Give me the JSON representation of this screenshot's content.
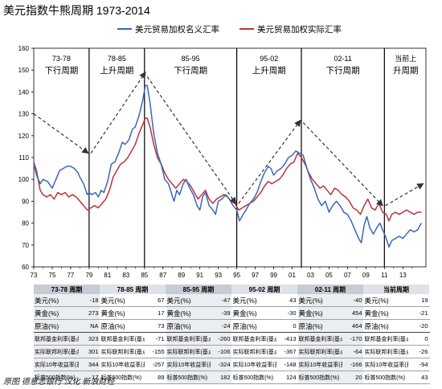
{
  "title": "美元指数牛熊周期 1973-2014",
  "source": "原图 德意志银行  汉化 新浪财经",
  "chart_data": {
    "type": "line",
    "ylim": [
      60,
      160
    ],
    "yticks": [
      60,
      70,
      80,
      90,
      100,
      110,
      120,
      130,
      140,
      150,
      160
    ],
    "xlim": [
      1973,
      2015.5
    ],
    "xtick_labels": [
      "73",
      "75",
      "77",
      "79",
      "81",
      "83",
      "85",
      "87",
      "89",
      "91",
      "93",
      "95",
      "97",
      "99",
      "01",
      "03",
      "05",
      "07",
      "09",
      "11",
      "13"
    ],
    "legend": "top-center",
    "series": [
      {
        "name": "美元贸易加权名义汇率",
        "color": "#3a68b8",
        "points": [
          [
            1973.0,
            107
          ],
          [
            1973.3,
            102
          ],
          [
            1973.7,
            98
          ],
          [
            1974.0,
            100
          ],
          [
            1974.5,
            99
          ],
          [
            1975.0,
            96
          ],
          [
            1975.4,
            100
          ],
          [
            1975.8,
            104
          ],
          [
            1976.2,
            105
          ],
          [
            1976.6,
            106
          ],
          [
            1977.0,
            106
          ],
          [
            1977.4,
            105
          ],
          [
            1977.8,
            103
          ],
          [
            1978.0,
            101
          ],
          [
            1978.4,
            98
          ],
          [
            1978.8,
            93
          ],
          [
            1979.0,
            94
          ],
          [
            1979.3,
            93
          ],
          [
            1979.7,
            94
          ],
          [
            1980.0,
            92
          ],
          [
            1980.3,
            95
          ],
          [
            1980.6,
            94
          ],
          [
            1981.0,
            99
          ],
          [
            1981.4,
            107
          ],
          [
            1981.8,
            108
          ],
          [
            1982.2,
            112
          ],
          [
            1982.6,
            117
          ],
          [
            1982.9,
            116
          ],
          [
            1983.3,
            118
          ],
          [
            1983.7,
            123
          ],
          [
            1984.0,
            124
          ],
          [
            1984.4,
            129
          ],
          [
            1984.8,
            136
          ],
          [
            1985.1,
            143
          ],
          [
            1985.3,
            143
          ],
          [
            1985.6,
            135
          ],
          [
            1986.0,
            121
          ],
          [
            1986.4,
            112
          ],
          [
            1986.8,
            107
          ],
          [
            1987.2,
            100
          ],
          [
            1987.6,
            98
          ],
          [
            1987.9,
            94
          ],
          [
            1988.2,
            90
          ],
          [
            1988.5,
            95
          ],
          [
            1988.8,
            93
          ],
          [
            1989.2,
            98
          ],
          [
            1989.5,
            100
          ],
          [
            1989.9,
            96
          ],
          [
            1990.3,
            93
          ],
          [
            1990.7,
            88
          ],
          [
            1991.0,
            86
          ],
          [
            1991.3,
            92
          ],
          [
            1991.6,
            94
          ],
          [
            1992.0,
            88
          ],
          [
            1992.4,
            86
          ],
          [
            1992.7,
            84
          ],
          [
            1993.0,
            90
          ],
          [
            1993.4,
            91
          ],
          [
            1993.8,
            93
          ],
          [
            1994.2,
            91
          ],
          [
            1994.6,
            88
          ],
          [
            1995.0,
            86
          ],
          [
            1995.3,
            81
          ],
          [
            1995.7,
            84
          ],
          [
            1996.0,
            86
          ],
          [
            1996.4,
            89
          ],
          [
            1996.8,
            91
          ],
          [
            1997.2,
            94
          ],
          [
            1997.6,
            99
          ],
          [
            1998.0,
            103
          ],
          [
            1998.4,
            106
          ],
          [
            1998.7,
            105
          ],
          [
            1999.0,
            102
          ],
          [
            1999.4,
            104
          ],
          [
            1999.8,
            105
          ],
          [
            2000.2,
            107
          ],
          [
            2000.6,
            110
          ],
          [
            2001.0,
            111
          ],
          [
            2001.4,
            113
          ],
          [
            2001.8,
            112
          ],
          [
            2002.2,
            111
          ],
          [
            2002.6,
            105
          ],
          [
            2003.0,
            100
          ],
          [
            2003.4,
            96
          ],
          [
            2003.8,
            91
          ],
          [
            2004.2,
            88
          ],
          [
            2004.6,
            90
          ],
          [
            2005.0,
            85
          ],
          [
            2005.4,
            88
          ],
          [
            2005.8,
            90
          ],
          [
            2006.2,
            88
          ],
          [
            2006.6,
            85
          ],
          [
            2007.0,
            84
          ],
          [
            2007.4,
            81
          ],
          [
            2007.8,
            77
          ],
          [
            2008.2,
            73
          ],
          [
            2008.5,
            71
          ],
          [
            2008.8,
            79
          ],
          [
            2009.1,
            83
          ],
          [
            2009.4,
            78
          ],
          [
            2009.8,
            75
          ],
          [
            2010.2,
            78
          ],
          [
            2010.5,
            80
          ],
          [
            2010.9,
            76
          ],
          [
            2011.2,
            73
          ],
          [
            2011.5,
            69
          ],
          [
            2011.8,
            72
          ],
          [
            2012.2,
            73
          ],
          [
            2012.6,
            74
          ],
          [
            2013.0,
            73
          ],
          [
            2013.4,
            75
          ],
          [
            2013.8,
            77
          ],
          [
            2014.2,
            76
          ],
          [
            2014.6,
            77
          ],
          [
            2015.0,
            80
          ]
        ]
      },
      {
        "name": "美元贸易加权实际汇率",
        "color": "#c0323a",
        "points": [
          [
            1973.0,
            108
          ],
          [
            1973.3,
            104
          ],
          [
            1973.7,
            95
          ],
          [
            1974.0,
            93
          ],
          [
            1974.4,
            92
          ],
          [
            1974.8,
            93
          ],
          [
            1975.2,
            91
          ],
          [
            1975.6,
            94
          ],
          [
            1976.0,
            93
          ],
          [
            1976.4,
            94
          ],
          [
            1976.8,
            92
          ],
          [
            1977.2,
            93
          ],
          [
            1977.6,
            92
          ],
          [
            1978.0,
            90
          ],
          [
            1978.4,
            88
          ],
          [
            1978.8,
            86
          ],
          [
            1979.2,
            87
          ],
          [
            1979.6,
            88
          ],
          [
            1980.0,
            87
          ],
          [
            1980.4,
            89
          ],
          [
            1980.8,
            91
          ],
          [
            1981.2,
            95
          ],
          [
            1981.6,
            101
          ],
          [
            1982.0,
            104
          ],
          [
            1982.4,
            107
          ],
          [
            1982.8,
            108
          ],
          [
            1983.2,
            110
          ],
          [
            1983.6,
            113
          ],
          [
            1984.0,
            116
          ],
          [
            1984.4,
            121
          ],
          [
            1984.8,
            125
          ],
          [
            1985.1,
            128
          ],
          [
            1985.3,
            128
          ],
          [
            1985.6,
            124
          ],
          [
            1986.0,
            116
          ],
          [
            1986.4,
            110
          ],
          [
            1986.8,
            107
          ],
          [
            1987.2,
            103
          ],
          [
            1987.6,
            100
          ],
          [
            1988.0,
            98
          ],
          [
            1988.4,
            96
          ],
          [
            1988.8,
            98
          ],
          [
            1989.2,
            100
          ],
          [
            1989.6,
            99
          ],
          [
            1990.0,
            97
          ],
          [
            1990.4,
            94
          ],
          [
            1990.8,
            91
          ],
          [
            1991.2,
            93
          ],
          [
            1991.6,
            95
          ],
          [
            1992.0,
            91
          ],
          [
            1992.4,
            89
          ],
          [
            1992.8,
            91
          ],
          [
            1993.2,
            92
          ],
          [
            1993.6,
            93
          ],
          [
            1994.0,
            92
          ],
          [
            1994.4,
            90
          ],
          [
            1994.8,
            89
          ],
          [
            1995.2,
            86
          ],
          [
            1995.6,
            87
          ],
          [
            1996.0,
            88
          ],
          [
            1996.4,
            89
          ],
          [
            1996.8,
            90
          ],
          [
            1997.2,
            92
          ],
          [
            1997.6,
            94
          ],
          [
            1998.0,
            97
          ],
          [
            1998.4,
            99
          ],
          [
            1998.8,
            98
          ],
          [
            1999.2,
            99
          ],
          [
            1999.6,
            100
          ],
          [
            2000.0,
            102
          ],
          [
            2000.4,
            105
          ],
          [
            2000.8,
            107
          ],
          [
            2001.2,
            108
          ],
          [
            2001.6,
            112
          ],
          [
            2002.0,
            110
          ],
          [
            2002.4,
            107
          ],
          [
            2002.8,
            103
          ],
          [
            2003.2,
            100
          ],
          [
            2003.6,
            98
          ],
          [
            2004.0,
            96
          ],
          [
            2004.4,
            97
          ],
          [
            2004.8,
            95
          ],
          [
            2005.2,
            93
          ],
          [
            2005.6,
            96
          ],
          [
            2006.0,
            95
          ],
          [
            2006.4,
            93
          ],
          [
            2006.8,
            92
          ],
          [
            2007.2,
            90
          ],
          [
            2007.6,
            87
          ],
          [
            2008.0,
            86
          ],
          [
            2008.4,
            84
          ],
          [
            2008.8,
            88
          ],
          [
            2009.2,
            91
          ],
          [
            2009.6,
            87
          ],
          [
            2010.0,
            86
          ],
          [
            2010.4,
            89
          ],
          [
            2010.8,
            85
          ],
          [
            2011.2,
            84
          ],
          [
            2011.5,
            81
          ],
          [
            2011.8,
            84
          ],
          [
            2012.2,
            85
          ],
          [
            2012.6,
            84
          ],
          [
            2013.0,
            85
          ],
          [
            2013.4,
            86
          ],
          [
            2013.8,
            85
          ],
          [
            2014.2,
            84
          ],
          [
            2014.6,
            85
          ],
          [
            2015.0,
            85
          ]
        ]
      }
    ],
    "cycle_boundaries": [
      1979,
      1985,
      1995,
      2002,
      2011
    ],
    "cycle_labels": [
      {
        "period": "73-78",
        "label": "下行周期",
        "x": 1976.0
      },
      {
        "period": "78-85",
        "label": "上升周期",
        "x": 1982.0
      },
      {
        "period": "85-95",
        "label": "下行周期",
        "x": 1990.0
      },
      {
        "period": "95-02",
        "label": "上升周期",
        "x": 1998.5
      },
      {
        "period": "02-11",
        "label": "下行周期",
        "x": 2006.5
      },
      {
        "period": "当前上",
        "label": "升周期",
        "x": 2013.3
      }
    ],
    "trend_arrows": [
      {
        "from": [
          1973,
          130
        ],
        "to": [
          1978.9,
          112
        ]
      },
      {
        "from": [
          1979.2,
          112
        ],
        "to": [
          1985.1,
          149
        ]
      },
      {
        "from": [
          1985.3,
          147
        ],
        "to": [
          1994.9,
          89
        ]
      },
      {
        "from": [
          1995.2,
          89
        ],
        "to": [
          2001.9,
          127
        ]
      },
      {
        "from": [
          2002.2,
          126
        ],
        "to": [
          2010.8,
          88
        ]
      },
      {
        "from": [
          2011.1,
          88
        ],
        "to": [
          2015.2,
          98
        ]
      }
    ]
  },
  "table": {
    "headers": [
      "73-78 周期",
      "78-85 周期",
      "85-95 周期",
      "95-02 周期",
      "02-11 周期",
      "当前周期"
    ],
    "labels": [
      "美元(%)",
      "黄金(%)",
      "原油(%)",
      "联邦基金利率(基点)",
      "实际联邦利率(基点)",
      "实际10年收益率(基点)",
      "标普500指数(%)"
    ],
    "values": [
      [
        "-18",
        "67",
        "-47",
        "43",
        "-40",
        "19"
      ],
      [
        "273",
        "17",
        "-39",
        "-30",
        "454",
        "-21"
      ],
      [
        "NA",
        "73",
        "-24",
        "0",
        "464",
        "-20"
      ],
      [
        "323",
        "-71",
        "-260",
        "-413",
        "-170",
        "0"
      ],
      [
        "301",
        "-155",
        "-106",
        "-367",
        "-64",
        "-26"
      ],
      [
        "344",
        "-257",
        "-324",
        "-148",
        "-166",
        "-94"
      ],
      [
        "17",
        "89",
        "182",
        "124",
        "20",
        "43"
      ]
    ]
  }
}
